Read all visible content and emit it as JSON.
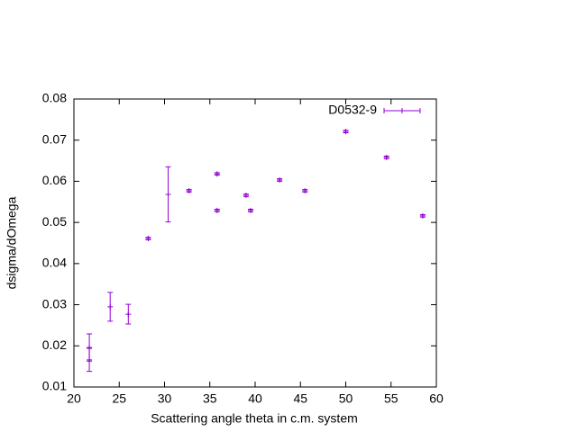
{
  "chart_data": {
    "type": "scatter",
    "xlabel": "Scattering angle theta in c.m. system",
    "ylabel": "dsigma/dOmega",
    "xlim": [
      20,
      60
    ],
    "ylim": [
      0.01,
      0.08
    ],
    "xticks": [
      20,
      25,
      30,
      35,
      40,
      45,
      50,
      55,
      60
    ],
    "yticks": [
      0.01,
      0.02,
      0.03,
      0.04,
      0.05,
      0.06,
      0.07,
      0.08
    ],
    "legend": "top-right",
    "series": [
      {
        "name": "D0532-9",
        "color": "#9400d3",
        "x": [
          21.7,
          21.7,
          24.0,
          26.0,
          28.2,
          30.4,
          32.7,
          35.8,
          35.8,
          39.0,
          39.5,
          42.7,
          45.5,
          50.0,
          54.5,
          58.5
        ],
        "values": [
          0.0196,
          0.0166,
          0.0295,
          0.0277,
          0.0461,
          0.0568,
          0.0577,
          0.0618,
          0.0529,
          0.0566,
          0.0529,
          0.0603,
          0.0577,
          0.0721,
          0.0658,
          0.0516
        ],
        "errors": [
          0.0033,
          0.0028,
          0.0035,
          0.0024,
          0.0003,
          0.0067,
          0.0003,
          0.0003,
          0.0003,
          0.0003,
          0.0003,
          0.0003,
          0.0003,
          0.0003,
          0.0003,
          0.0003
        ]
      }
    ]
  }
}
